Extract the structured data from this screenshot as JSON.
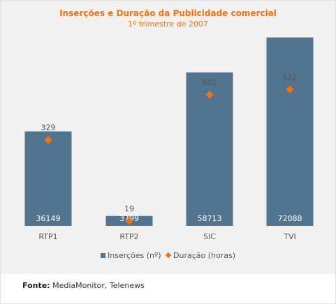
{
  "colors": {
    "bar": "#52748f",
    "marker": "#ef7310",
    "title": "#ef7310",
    "background": "#f1f1f1"
  },
  "chart_data": {
    "type": "bar",
    "title": "Inserções e Duração da Publicidade comercial",
    "subtitle": "1º trimestre de 2007",
    "categories": [
      "RTP1",
      "RTP2",
      "SIC",
      "TVI"
    ],
    "series": [
      {
        "name": "Inserções (nº)",
        "type": "bar",
        "values": [
          36149,
          3799,
          58713,
          72088
        ]
      },
      {
        "name": "Duração (horas)",
        "type": "marker",
        "marker": "diamond",
        "values": [
          329,
          19,
          502,
          522
        ]
      }
    ],
    "ylim": [
      0,
      80000
    ],
    "y2lim": [
      0,
      800
    ],
    "grid": false,
    "legend_position": "bottom"
  },
  "source": {
    "label": "Fonte:",
    "text": "MediaMonitor, Telenews"
  }
}
